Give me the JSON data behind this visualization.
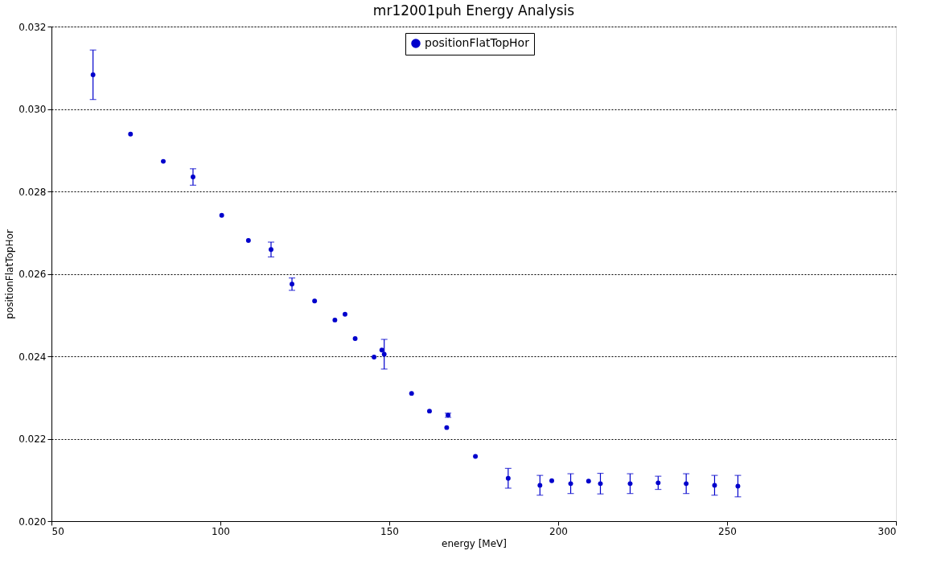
{
  "chart_data": {
    "type": "scatter",
    "title": "mr12001puh Energy Analysis",
    "xlabel": "energy [MeV]",
    "ylabel": "positionFlatTopHor",
    "x": [
      62.3,
      73.4,
      83.1,
      91.9,
      100.4,
      108.3,
      115.0,
      121.2,
      127.9,
      133.9,
      136.9,
      139.9,
      145.5,
      147.8,
      148.5,
      156.6,
      161.9,
      167.0,
      167.4,
      175.5,
      185.2,
      194.6,
      198.1,
      203.7,
      209.0,
      212.5,
      221.3,
      229.6,
      237.9,
      246.3,
      253.2
    ],
    "series": [
      {
        "name": "positionFlatTopHor",
        "color": "#0000cc",
        "values": [
          0.03083,
          0.02939,
          0.02873,
          0.02835,
          0.02742,
          0.02681,
          0.02659,
          0.02575,
          0.02534,
          0.02488,
          0.02502,
          0.02443,
          0.02398,
          0.02415,
          0.02405,
          0.0231,
          0.02267,
          0.02227,
          0.02257,
          0.02157,
          0.02104,
          0.02087,
          0.02098,
          0.02091,
          0.02097,
          0.02091,
          0.02091,
          0.02093,
          0.02091,
          0.02087,
          0.02085
        ],
        "errors": [
          0.0006,
          null,
          null,
          0.0002,
          null,
          null,
          0.00018,
          0.00015,
          null,
          null,
          null,
          null,
          null,
          null,
          0.00036,
          null,
          null,
          null,
          5e-05,
          null,
          0.00024,
          0.00024,
          null,
          0.00024,
          null,
          0.00025,
          0.00024,
          0.00016,
          0.00024,
          0.00024,
          0.00026
        ]
      }
    ],
    "xlim": [
      50,
      300
    ],
    "xticks": [
      50,
      100,
      150,
      200,
      250,
      300
    ],
    "ylim": [
      0.02,
      0.032
    ],
    "yticks": [
      {
        "value": 0.02,
        "label": "0.020"
      },
      {
        "value": 0.022,
        "label": "0.022"
      },
      {
        "value": 0.024,
        "label": "0.024"
      },
      {
        "value": 0.026,
        "label": "0.026"
      },
      {
        "value": 0.028,
        "label": "0.028"
      },
      {
        "value": 0.03,
        "label": "0.030"
      },
      {
        "value": 0.032,
        "label": "0.032"
      }
    ],
    "grid": "y",
    "legend": "top",
    "marker": "circle"
  }
}
